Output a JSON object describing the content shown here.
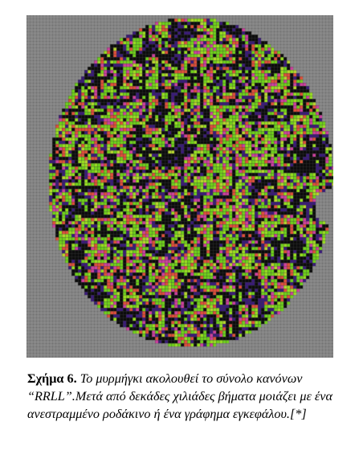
{
  "figure": {
    "palette": {
      "background_grid": "#8a8a8a",
      "grid_line": "#a0a0a0",
      "cells": [
        "#6fd21a",
        "#99e020",
        "#e04f3a",
        "#cf3f9e",
        "#3a1a7a",
        "#0b0b0b",
        "#b8d82e"
      ]
    }
  },
  "caption": {
    "label": "Σχήμα 6.",
    "text": "Το μυρμήγκι ακολουθεί το σύνολο κανόνων “RRLL”.Μετά από δεκάδες χιλιάδες βήματα μοιάζει με ένα ανεστραμμένο ροδάκινο ή ένα γράφημα εγκεφάλου.[*]"
  }
}
